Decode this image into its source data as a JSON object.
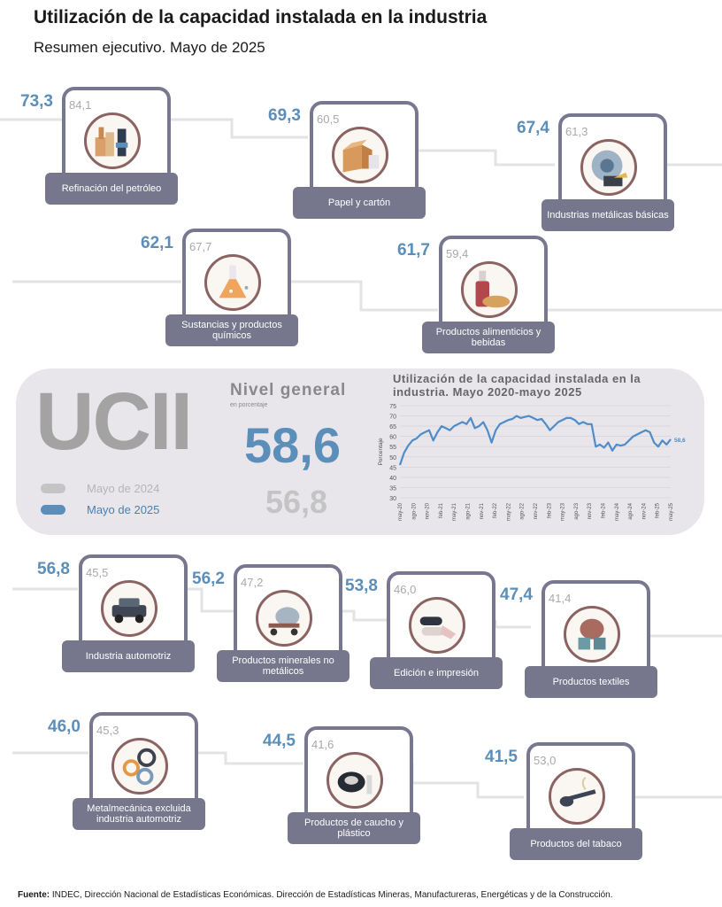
{
  "header": {
    "title": "Utilización de la capacidad instalada en la industria",
    "subtitle": "Resumen ejecutivo. Mayo de 2025"
  },
  "colors": {
    "current": "#5b8fb9",
    "previous": "#a9a9a9",
    "frame": "#77788f",
    "label_bg": "#76768d",
    "circle": "#8b6362"
  },
  "sectors": [
    {
      "name": "Refinación del petróleo",
      "prev": "84,1",
      "curr": "73,3",
      "icon": "oil-refinery-icon"
    },
    {
      "name": "Papel y cartón",
      "prev": "60,5",
      "curr": "69,3",
      "icon": "cardboard-box-icon"
    },
    {
      "name": "Industrias metálicas básicas",
      "prev": "61,3",
      "curr": "67,4",
      "icon": "metal-grinder-icon"
    },
    {
      "name": "Sustancias y productos químicos",
      "prev": "67,7",
      "curr": "62,1",
      "icon": "chemistry-flask-icon"
    },
    {
      "name": "Productos alimenticios y bebidas",
      "prev": "59,4",
      "curr": "61,7",
      "icon": "bottle-bread-icon"
    },
    {
      "name": "Industria automotriz",
      "prev": "45,5",
      "curr": "56,8",
      "icon": "truck-icon"
    },
    {
      "name": "Productos minerales no metálicos",
      "prev": "47,2",
      "curr": "56,2",
      "icon": "cement-mixer-icon"
    },
    {
      "name": "Edición e impresión",
      "prev": "46,0",
      "curr": "53,8",
      "icon": "paper-roll-icon"
    },
    {
      "name": "Productos textiles",
      "prev": "41,4",
      "curr": "47,4",
      "icon": "thread-spool-icon"
    },
    {
      "name": "Metalmecánica excluida industria automotriz",
      "prev": "45,3",
      "curr": "46,0",
      "icon": "gears-icon"
    },
    {
      "name": "Productos de caucho y plástico",
      "prev": "41,6",
      "curr": "44,5",
      "icon": "tire-icon"
    },
    {
      "name": "Productos del tabaco",
      "prev": "53,0",
      "curr": "41,5",
      "icon": "pipe-icon"
    }
  ],
  "summary": {
    "ucii": "UCII",
    "nivel_label": "Nivel general",
    "unit": "en porcentaje",
    "current_value": "58,6",
    "previous_value": "56,8",
    "legend_prev": "Mayo de 2024",
    "legend_curr": "Mayo de 2025"
  },
  "chart_data": {
    "type": "line",
    "title": "Utilización de la capacidad instalada en la industria. Mayo 2020-mayo 2025",
    "xlabel": "",
    "ylabel": "Porcentaje",
    "ylim": [
      30,
      75
    ],
    "yticks": [
      30,
      35,
      40,
      45,
      50,
      55,
      60,
      65,
      70,
      75
    ],
    "grid": true,
    "x_tick_labels": [
      "may-20",
      "ago-20",
      "nov-20",
      "feb-21",
      "may-21",
      "ago-21",
      "nov-21",
      "feb-22",
      "may-22",
      "ago-22",
      "nov-22",
      "feb-23",
      "may-23",
      "ago-23",
      "nov-23",
      "feb-24",
      "may-24",
      "ago-24",
      "nov-24",
      "feb-25",
      "may-25"
    ],
    "end_label": "58,6",
    "series": [
      {
        "values": [
          46.0,
          52.0,
          55.5,
          58.0,
          59.0,
          61.0,
          62.0,
          63.0,
          58.0,
          62.0,
          65.0,
          64.0,
          63.0,
          65.0,
          66.0,
          67.0,
          66.0,
          69.0,
          64.0,
          65.0,
          67.0,
          63.0,
          57.0,
          63.0,
          66.0,
          67.0,
          68.0,
          68.5,
          70.0,
          69.0,
          69.5,
          70.0,
          69.0,
          68.0,
          68.5,
          66.0,
          63.0,
          65.0,
          67.0,
          68.0,
          69.0,
          69.0,
          68.0,
          66.0,
          67.0,
          66.0,
          66.0,
          55.0,
          56.0,
          54.5,
          57.0,
          53.0,
          56.0,
          55.5,
          56.0,
          58.0,
          60.0,
          61.0,
          62.0,
          63.0,
          62.0,
          57.0,
          55.0,
          58.0,
          56.0,
          58.6
        ]
      }
    ]
  },
  "footer": {
    "label": "Fuente:",
    "text": " INDEC, Dirección Nacional de Estadísticas Económicas. Dirección de Estadísticas Mineras, Manufactureras, Energéticas y de la Construcción."
  }
}
